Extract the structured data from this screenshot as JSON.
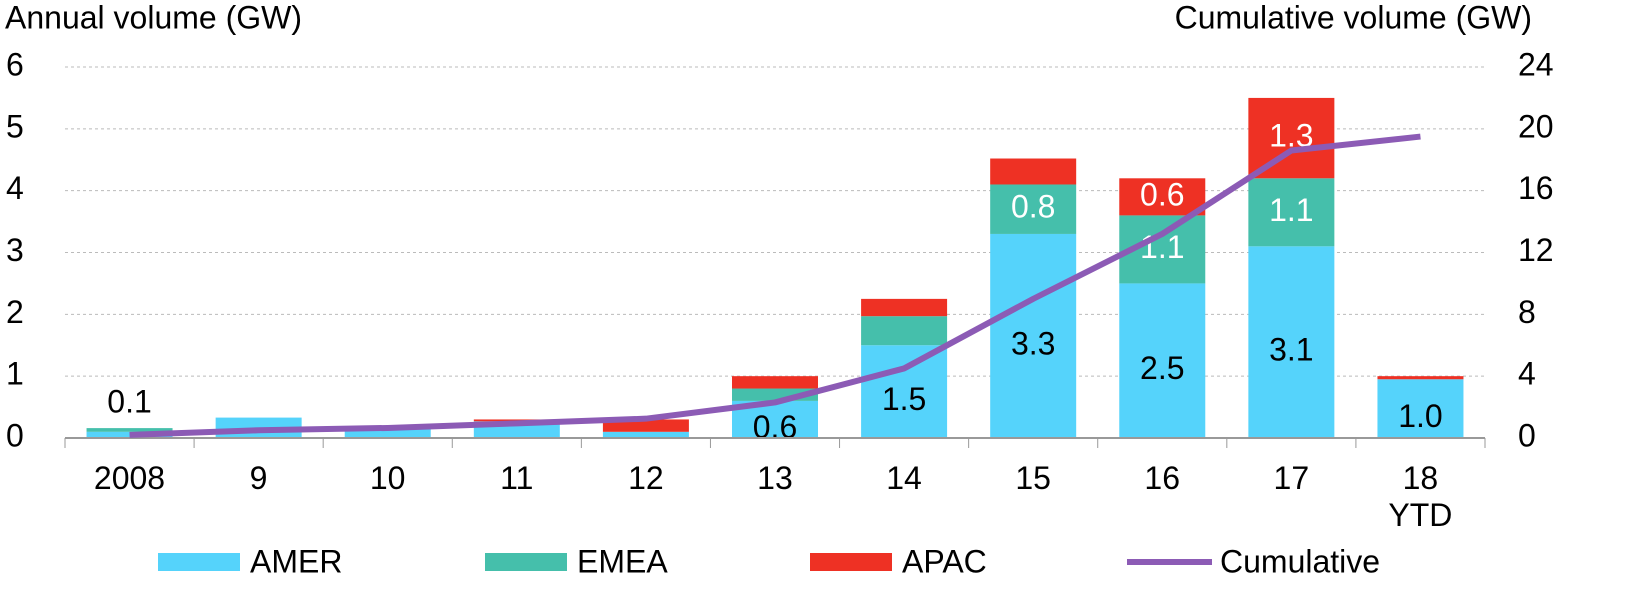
{
  "chart_data": {
    "type": "bar",
    "stacked": true,
    "ylabel": "Annual volume (GW)",
    "y2label": "Cumulative volume (GW)",
    "categories": [
      "2008",
      "9",
      "10",
      "11",
      "12",
      "13",
      "14",
      "15",
      "16",
      "17",
      "18\nYTD"
    ],
    "series": [
      {
        "name": "AMER",
        "color": "#55d3fb",
        "label_color": "#000000",
        "values": [
          0.1,
          0.33,
          0.15,
          0.27,
          0.1,
          0.6,
          1.5,
          3.3,
          2.5,
          3.1,
          0.95
        ],
        "value_labels": [
          "0.1",
          null,
          null,
          null,
          null,
          "0.6",
          "1.5",
          "3.3",
          "2.5",
          "3.1",
          "1.0"
        ]
      },
      {
        "name": "EMEA",
        "color": "#45bfab",
        "label_color": "#ffffff",
        "values": [
          0.06,
          0,
          0,
          0,
          0,
          0.2,
          0.47,
          0.8,
          1.1,
          1.1,
          0
        ],
        "value_labels": [
          null,
          null,
          null,
          null,
          null,
          null,
          null,
          "0.8",
          "1.1",
          "1.1",
          null
        ]
      },
      {
        "name": "APAC",
        "color": "#ee3124",
        "label_color": "#ffffff",
        "values": [
          0,
          0,
          0,
          0.03,
          0.2,
          0.2,
          0.28,
          0.42,
          0.6,
          1.3,
          0.05
        ],
        "value_labels": [
          null,
          null,
          null,
          null,
          null,
          null,
          null,
          null,
          "0.6",
          "1.3",
          null
        ]
      },
      {
        "name": "Cumulative",
        "type": "line",
        "axis": "y2",
        "color": "#8c5bb5",
        "values": [
          0.2,
          0.5,
          0.65,
          0.95,
          1.25,
          2.3,
          4.5,
          9.0,
          13.2,
          18.6,
          19.5
        ]
      }
    ],
    "ylim": [
      0,
      6
    ],
    "yticks": [
      0,
      1,
      2,
      3,
      4,
      5,
      6
    ],
    "y2lim": [
      0,
      24
    ],
    "y2ticks": [
      0,
      4,
      8,
      12,
      16,
      20,
      24
    ],
    "grid": true,
    "legend": "bottom"
  }
}
